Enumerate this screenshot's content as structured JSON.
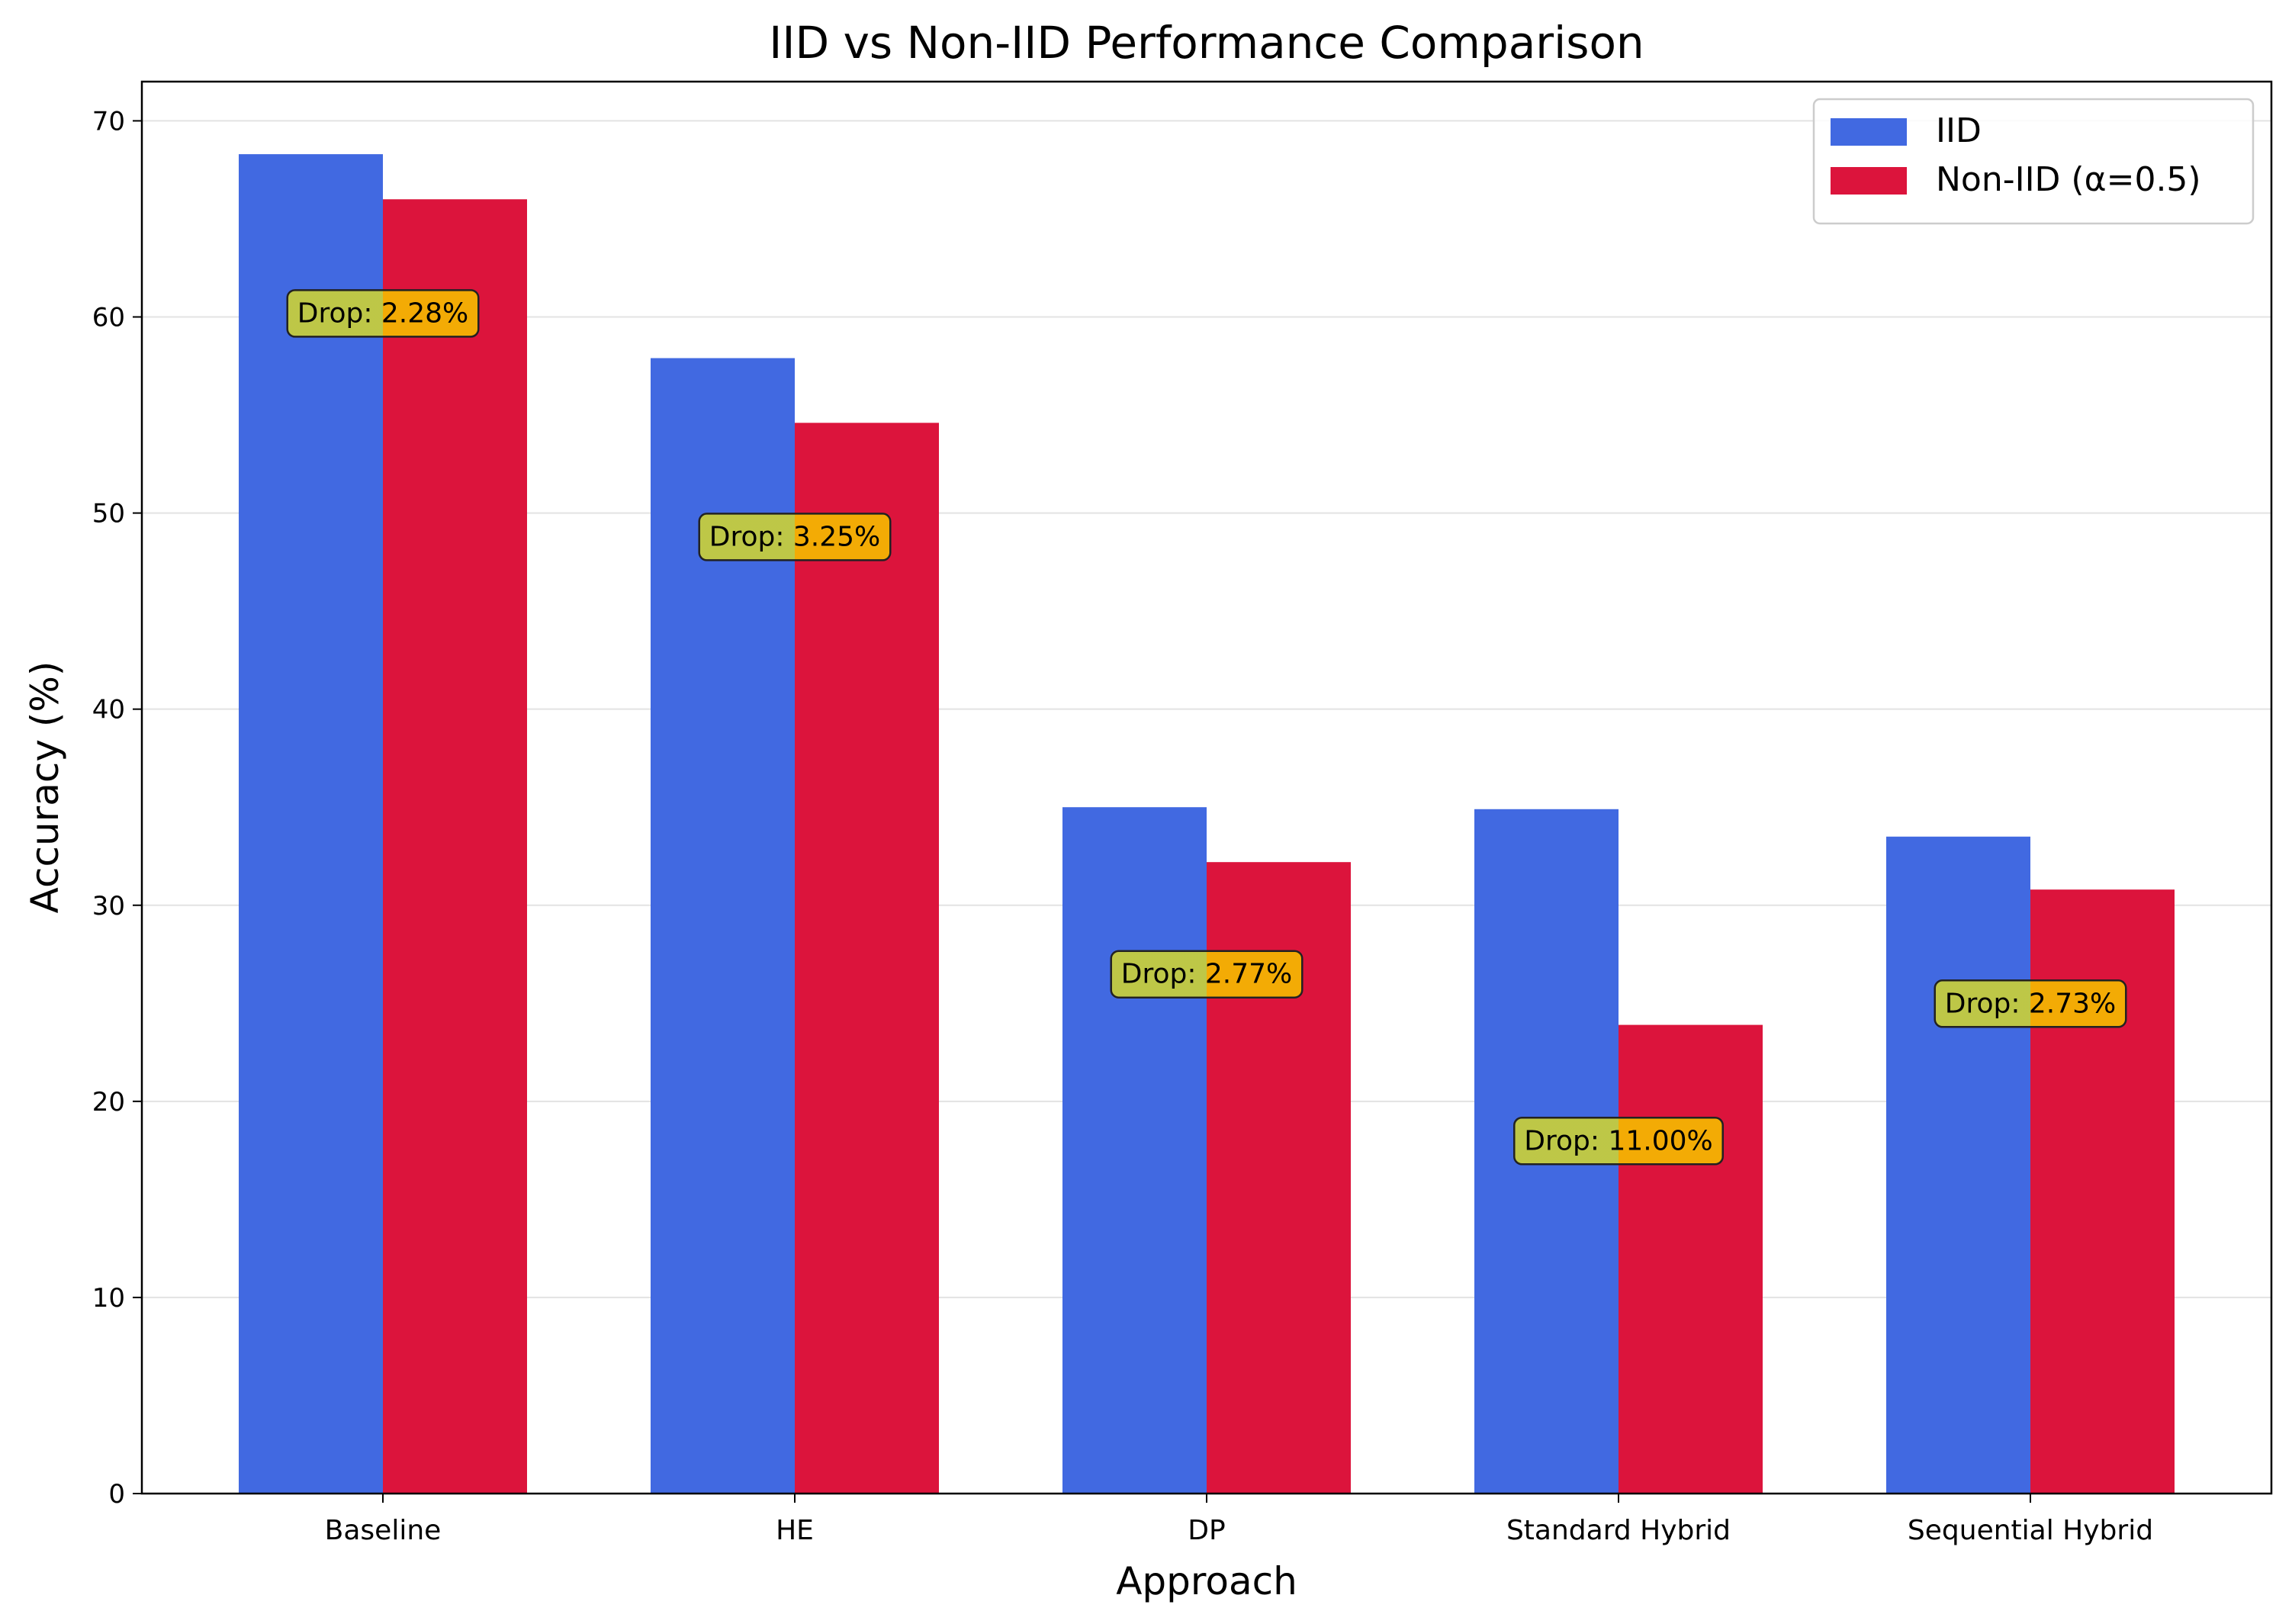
{
  "chart_data": {
    "type": "bar",
    "title": "IID vs Non-IID Performance Comparison",
    "xlabel": "Approach",
    "ylabel": "Accuracy (%)",
    "ylim": [
      0,
      72
    ],
    "yticks": [
      0,
      10,
      20,
      30,
      40,
      50,
      60,
      70
    ],
    "grid": "y",
    "legend": "top-right",
    "categories": [
      "Baseline",
      "HE",
      "DP",
      "Standard Hybrid",
      "Sequential Hybrid"
    ],
    "series": [
      {
        "name": "IID",
        "color": "#4169e1",
        "values": [
          68.3,
          57.9,
          35.0,
          34.9,
          33.5
        ]
      },
      {
        "name": "Non-IID (α=0.5)",
        "color": "#dc143c",
        "values": [
          66.0,
          54.6,
          32.2,
          23.9,
          30.8
        ]
      }
    ],
    "annotations": [
      {
        "text": "Drop: 2.28%",
        "category": "Baseline",
        "y": 60.2
      },
      {
        "text": "Drop: 3.25%",
        "category": "HE",
        "y": 48.8
      },
      {
        "text": "Drop: 2.77%",
        "category": "DP",
        "y": 26.5
      },
      {
        "text": "Drop: 11.00%",
        "category": "Standard Hybrid",
        "y": 18.0
      },
      {
        "text": "Drop: 2.73%",
        "category": "Sequential Hybrid",
        "y": 25.0
      }
    ],
    "annotation_colors": {
      "left": "#c8cf3a",
      "right": "#f5b800",
      "border": "#222222"
    }
  }
}
